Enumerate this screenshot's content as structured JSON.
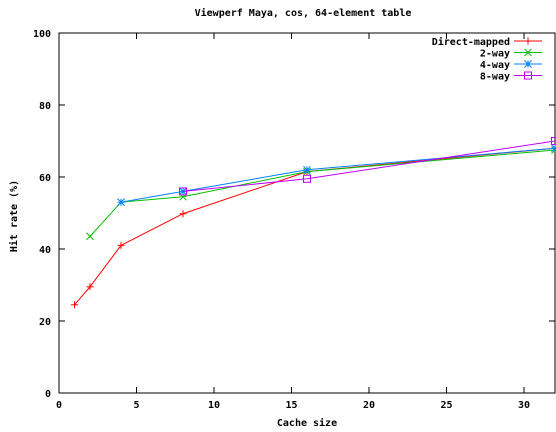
{
  "chart_data": {
    "type": "line",
    "title": "Viewperf Maya, cos, 64-element table",
    "xlabel": "Cache size",
    "ylabel": "Hit rate (%)",
    "xlim": [
      0,
      32
    ],
    "ylim": [
      0,
      100
    ],
    "xticks": [
      0,
      5,
      10,
      15,
      20,
      25,
      30
    ],
    "yticks": [
      0,
      20,
      40,
      60,
      80,
      100
    ],
    "grid": false,
    "legend_position": "top-right",
    "series": [
      {
        "name": "Direct-mapped",
        "color": "#ff0000",
        "marker": "plus",
        "x": [
          1,
          2,
          4,
          8,
          16,
          32
        ],
        "y": [
          24.5,
          29.5,
          41,
          49.8,
          61.5,
          68
        ]
      },
      {
        "name": "2-way",
        "color": "#00c000",
        "marker": "cross",
        "x": [
          2,
          4,
          8,
          16,
          32
        ],
        "y": [
          43.5,
          53,
          54.5,
          61.5,
          67.5
        ]
      },
      {
        "name": "4-way",
        "color": "#0080ff",
        "marker": "star",
        "x": [
          4,
          8,
          16,
          32
        ],
        "y": [
          53,
          56,
          62,
          68
        ]
      },
      {
        "name": "8-way",
        "color": "#c000ff",
        "marker": "square",
        "x": [
          8,
          16,
          32
        ],
        "y": [
          56,
          59.5,
          70
        ]
      }
    ]
  }
}
